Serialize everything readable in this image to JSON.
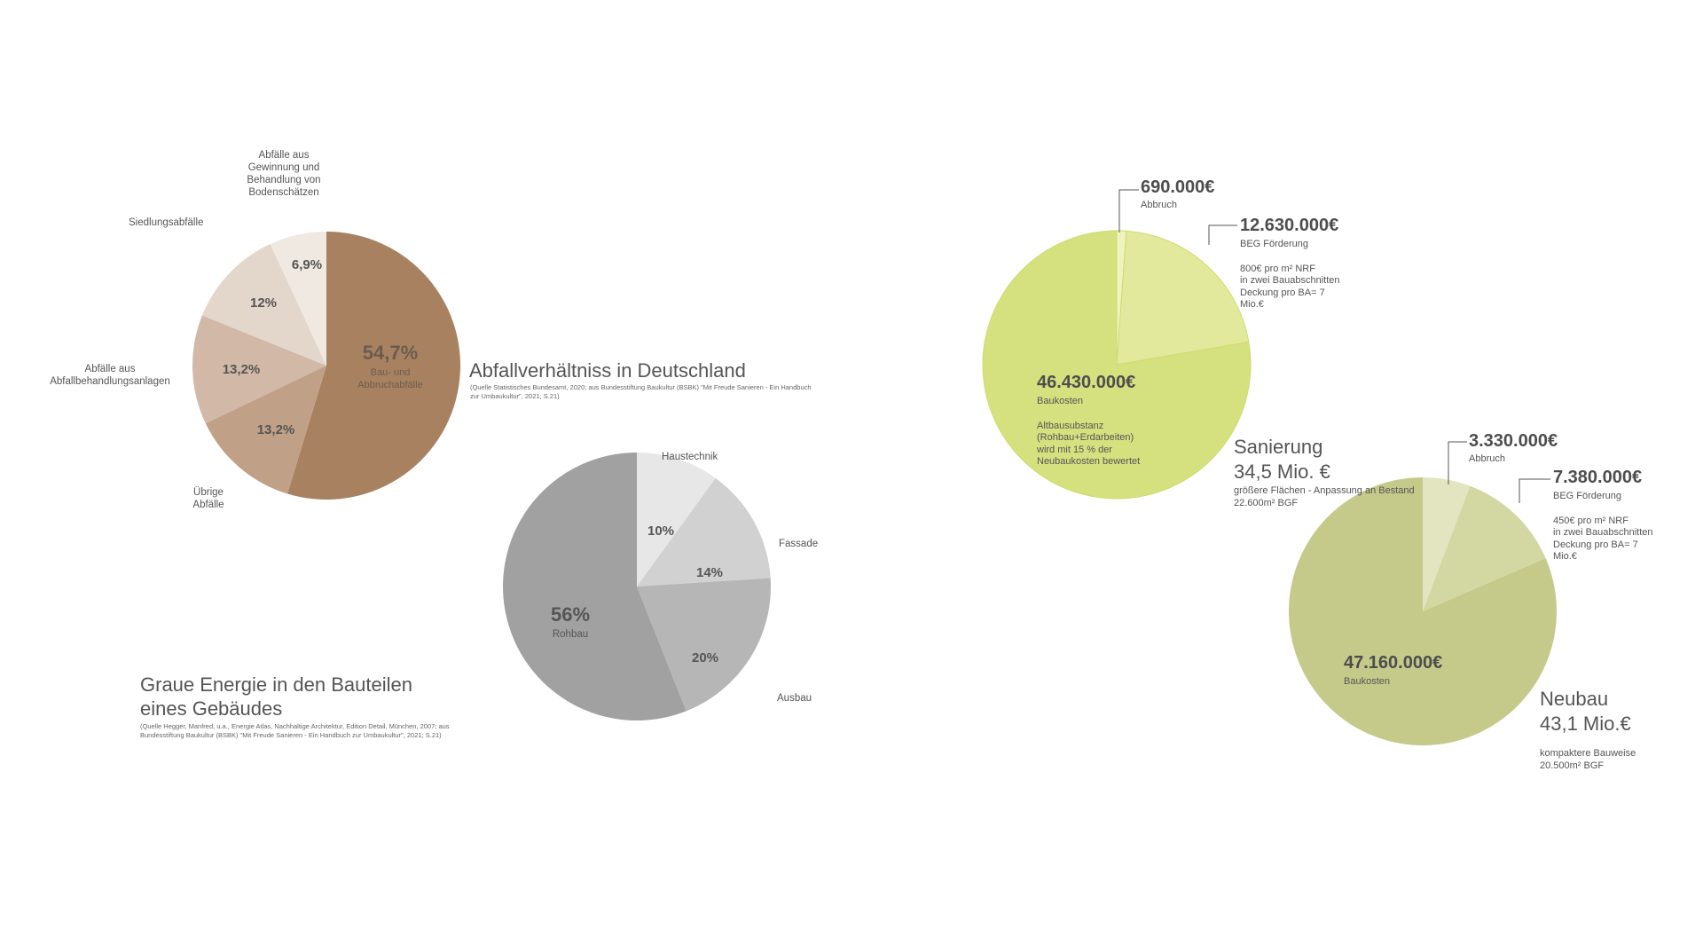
{
  "colors": {
    "waste": [
      "#a88260",
      "#c0a187",
      "#d2b8a6",
      "#e3d6cb",
      "#f0e9e2"
    ],
    "energy": [
      "#e7e7e7",
      "#d1d1d1",
      "#b6b6b6",
      "#a1a1a1"
    ],
    "sanierung": [
      "#eff3c0",
      "#e2e99d",
      "#d5e07f"
    ],
    "neubau": [
      "#e2e5bf",
      "#d3d7a2",
      "#c5ca8a"
    ],
    "leader": "#555555"
  },
  "chart_data": [
    {
      "type": "pie",
      "title": "Abfallverhältniss in Deutschland",
      "source": "(Quelle Statistisches Bundesamt, 2020; aus Bundesstiftung Baukultur (BSBK) \"Mit Freude Sanieren - Ein Handbuch zur Umbaukultur\", 2021; S.21)",
      "slices": [
        {
          "label": "Bau- und Abbruchabfälle",
          "value": 54.7,
          "pct_label": "54,7%"
        },
        {
          "label": "Übrige Abfälle",
          "value": 13.2,
          "pct_label": "13,2%"
        },
        {
          "label": "Abfälle aus Abfallbehandlungsanlagen",
          "value": 13.2,
          "pct_label": "13,2%"
        },
        {
          "label": "Siedlungsabfälle",
          "value": 12,
          "pct_label": "12%"
        },
        {
          "label": "Abfälle aus Gewinnung und Behandlung von Bodenschätzen",
          "value": 6.9,
          "pct_label": "6,9%"
        }
      ],
      "outer_labels": {
        "bodenschaetze": [
          "Abfälle aus",
          "Gewinnung und",
          "Behandlung von",
          "Bodenschätzen"
        ],
        "siedlung": "Siedlungsabfälle",
        "behandlung": [
          "Abfälle aus",
          "Abfallbehandlungsanlagen"
        ],
        "uebrige": [
          "Übrige",
          "Abfälle"
        ]
      },
      "center_sub": [
        "Bau- und",
        "Abbruchabfälle"
      ]
    },
    {
      "type": "pie",
      "title": "Graue Energie in den Bauteilen eines Gebäudes",
      "title_lines": [
        "Graue Energie in den Bauteilen",
        "eines Gebäudes"
      ],
      "source_lines": [
        "(Quelle Hegger, Manfred, u.a., Energie Atlas, Nachhaltige Architektur, Edition Detail, München, 2007; aus",
        "Bundesstiftung Baukultur (BSBK) \"Mit Freude Sanieren - Ein Handbuch zur Umbaukultur\", 2021; S.21)"
      ],
      "slices": [
        {
          "label": "Haustechnik",
          "value": 10,
          "pct_label": "10%"
        },
        {
          "label": "Fassade",
          "value": 14,
          "pct_label": "14%"
        },
        {
          "label": "Ausbau",
          "value": 20,
          "pct_label": "20%"
        },
        {
          "label": "Rohbau",
          "value": 56,
          "pct_label": "56%"
        }
      ]
    },
    {
      "type": "pie",
      "title": "Sanierung",
      "total": "34,5 Mio. €",
      "notes": [
        "größere Flächen - Anpassung an Bestand",
        "22.600m² BGF"
      ],
      "slices": [
        {
          "label": "Abbruch",
          "value": 690000,
          "amount": "690.000€"
        },
        {
          "label": "BEG Förderung",
          "value": 12630000,
          "amount": "12.630.000€",
          "notes": [
            "800€ pro m² NRF",
            "in zwei Bauabschnitten",
            "Deckung pro BA= 7",
            "Mio.€"
          ]
        },
        {
          "label": "Baukosten",
          "value": 46430000,
          "amount": "46.430.000€",
          "notes": [
            "Altbausubstanz",
            "(Rohbau+Erdarbeiten)",
            "wird mit 15 % der",
            "Neubaukosten bewertet"
          ]
        }
      ]
    },
    {
      "type": "pie",
      "title": "Neubau",
      "total": "43,1 Mio.€",
      "notes": [
        "kompaktere Bauweise",
        "20.500m² BGF"
      ],
      "slices": [
        {
          "label": "Abbruch",
          "value": 3330000,
          "amount": "3.330.000€"
        },
        {
          "label": "BEG Förderung",
          "value": 7380000,
          "amount": "7.380.000€",
          "notes": [
            "450€ pro m² NRF",
            "in zwei Bauabschnitten",
            "Deckung pro BA= 7",
            "Mio.€"
          ]
        },
        {
          "label": "Baukosten",
          "value": 47160000,
          "amount": "47.160.000€"
        }
      ]
    }
  ]
}
